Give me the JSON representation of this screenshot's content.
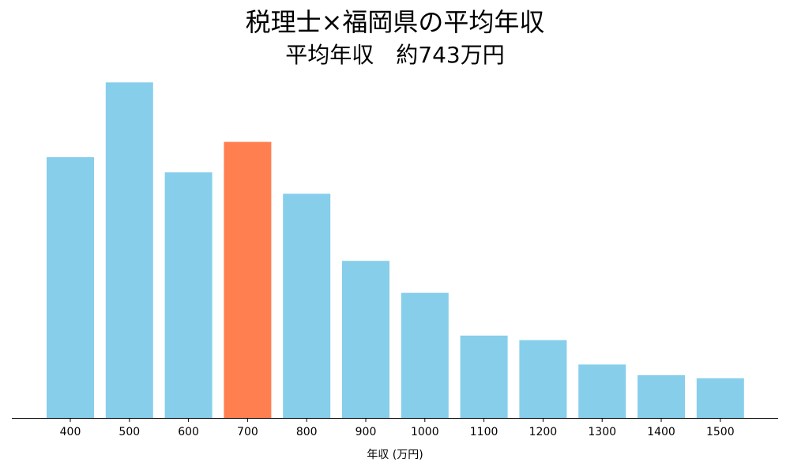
{
  "chart_data": {
    "type": "bar",
    "title": "税理士×福岡県の平均年収",
    "subtitle": "平均年収　約743万円",
    "xlabel": "年収 (万円)",
    "ylabel": "",
    "categories": [
      "400",
      "500",
      "600",
      "700",
      "800",
      "900",
      "1000",
      "1100",
      "1200",
      "1300",
      "1400",
      "1500"
    ],
    "values": [
      171,
      220,
      161,
      181,
      147,
      103,
      82,
      54,
      51,
      35,
      28,
      26
    ],
    "ylim": [
      0,
      230
    ],
    "highlight_category": "700",
    "colors": {
      "bar": "#87CEEB",
      "highlight": "#FF7F50",
      "axis": "#000000"
    },
    "grid": false,
    "y_axis_visible": false
  }
}
